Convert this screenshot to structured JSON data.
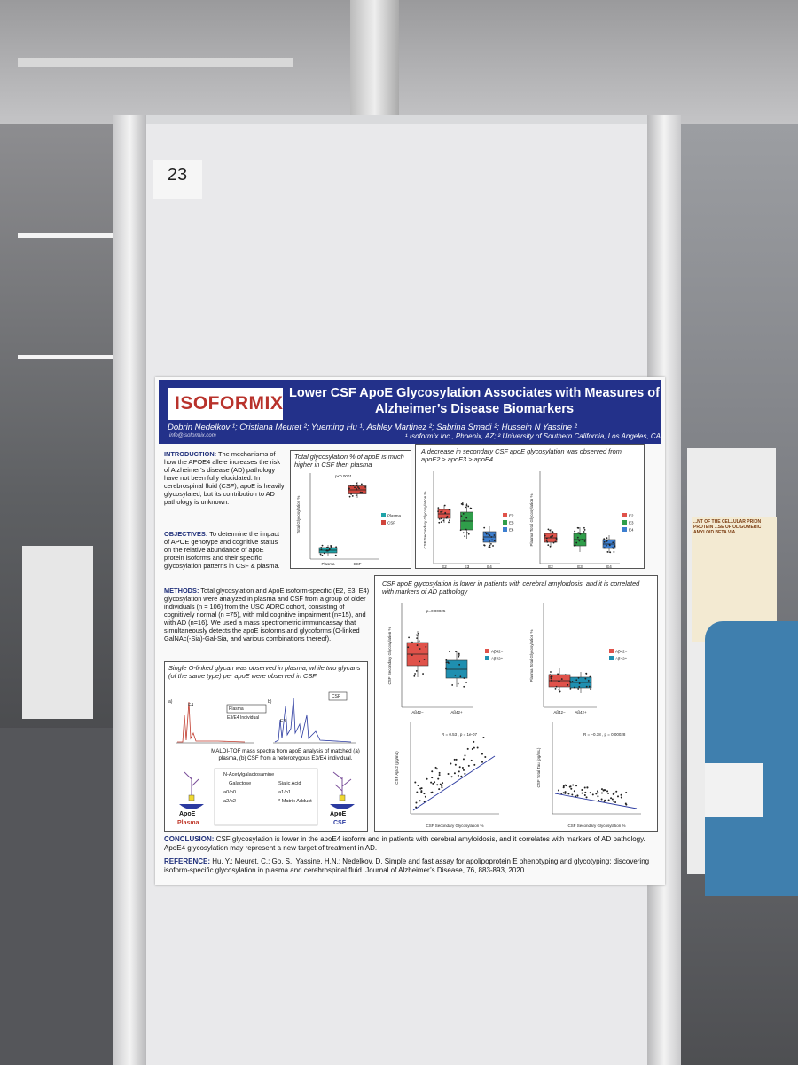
{
  "board_number": "23",
  "background": {
    "neighbor_title": "...NT OF THE CELLULAR PRION PROTEIN ...SE OF OLIGOMERIC AMYLOID BETA VIA"
  },
  "poster": {
    "logo": "ISOFORMIX",
    "title": "Lower CSF ApoE Glycosylation Associates with Measures of Alzheimer’s Disease Biomarkers",
    "authors": "Dobrin Nedelkov ¹; Cristiana Meuret ²; Yueming Hu ¹; Ashley Martinez ²; Sabrina Smadi ²; Hussein N Yassine ²",
    "affiliations": "¹ Isoformix Inc., Phoenix, AZ; ² University of Southern California, Los Angeles, CA",
    "email": "info@isoformix.com",
    "introduction": {
      "heading": "INTRODUCTION:",
      "text": "The mechanisms of how the APOE4 allele increases the risk of Alzheimer’s disease (AD) pathology have not been fully elucidated. In cerebrospinal fluid (CSF), apoE is heavily glycosylated, but its contribution to AD pathology is unknown."
    },
    "objectives": {
      "heading": "OBJECTIVES:",
      "text": "To determine the impact of APOE genotype and cognitive status on the relative abundance of apoE protein isoforms and their specific glycosylation patterns in CSF & plasma."
    },
    "methods": {
      "heading": "METHODS:",
      "text": "Total glycosylation and ApoE isoform-specific (E2, E3, E4) glycosylation were analyzed in plasma and CSF from a group of older individuals (n = 106) from the USC ADRC cohort, consisting of cognitively normal (n =75), with mild cognitive impairment (n=15), and with AD (n=16). We used a mass spectrometric immunoassay that simultaneously detects the apoE isoforms and glycoforms (O-linked GalNAc(-Sia)-Gal-Sia, and various combinations thereof)."
    },
    "spectra": {
      "title": "Single O-linked glycan was observed in plasma, while two glycans (of the same type) per apoE were observed in CSF",
      "labels": [
        "a)",
        "b)",
        "E4",
        "E3",
        "Plasma",
        "CSF",
        "E3/E4 Individual"
      ],
      "caption": "MALDI-TOF mass spectra from apoE analysis of matched (a) plasma, (b) CSF from a heterozygous E3/E4 individual.",
      "legend": [
        "N-Acetylgalactosamine",
        "Galactose",
        "Sialic Acid",
        "a0/b0",
        "a1/b1",
        "a2/b2",
        "* Matrix Adduct"
      ],
      "icons": [
        "ApoE",
        "Plasma",
        "ApoE",
        "CSF"
      ]
    },
    "panels": [
      {
        "title": "Total glycosylation % of apoE is much higher in CSF then plasma",
        "pvalue": "p<0.0001",
        "ylabel": "Total Glycosylation %",
        "groups": [
          "Plasma",
          "CSF"
        ],
        "colors": [
          "#1fa3a8",
          "#d0453c"
        ]
      },
      {
        "title": "A decrease in secondary CSF apoE glycosylation was observed from apoE2 > apoE3 > apoE4",
        "ylabels": [
          "CSF Secondary Glycosylation %",
          "Plasma Total Glycosylation %"
        ],
        "groups": [
          "E2",
          "E3",
          "E4"
        ],
        "colors": [
          "#e0524a",
          "#2f9e4a",
          "#3d7fd0"
        ]
      },
      {
        "title": "CSF apoE glycosylation is lower in patients with cerebral amyloidosis, and it is correlated with markers of AD pathology",
        "ylabels": [
          "CSF Secondary Glycosylation %",
          "Plasma Total Glycosylation %",
          "CSF Aβ42 (pg/mL)",
          "CSF Total Tau (pg/mL)"
        ],
        "groups": [
          "Aβ42−",
          "Aβ42+"
        ],
        "colors": [
          "#e0524a",
          "#1f8fb0"
        ],
        "pvalue": "p=0.00025",
        "xlabel": "CSF Secondary Glycosylation %",
        "stats": [
          "R = 0.53 , p = 1e-07",
          "R = −0.38 , p = 0.00028"
        ]
      }
    ],
    "conclusion": {
      "heading": "CONCLUSION:",
      "text": "CSF glycosylation is lower in the apoE4 isoform and in patients with cerebral amyloidosis, and it correlates with markers of AD pathology. ApoE4 glycosylation may represent a new target of treatment in AD."
    },
    "reference": {
      "heading": "REFERENCE:",
      "text": "Hu, Y.; Meuret, C.; Go, S.; Yassine, H.N.; Nedelkov, D. Simple and fast assay for apolipoprotein E phenotyping and glycotyping: discovering isoform-specific glycosylation in plasma and cerebrospinal fluid. Journal of Alzheimer’s Disease, 76, 883-893, 2020."
    }
  }
}
